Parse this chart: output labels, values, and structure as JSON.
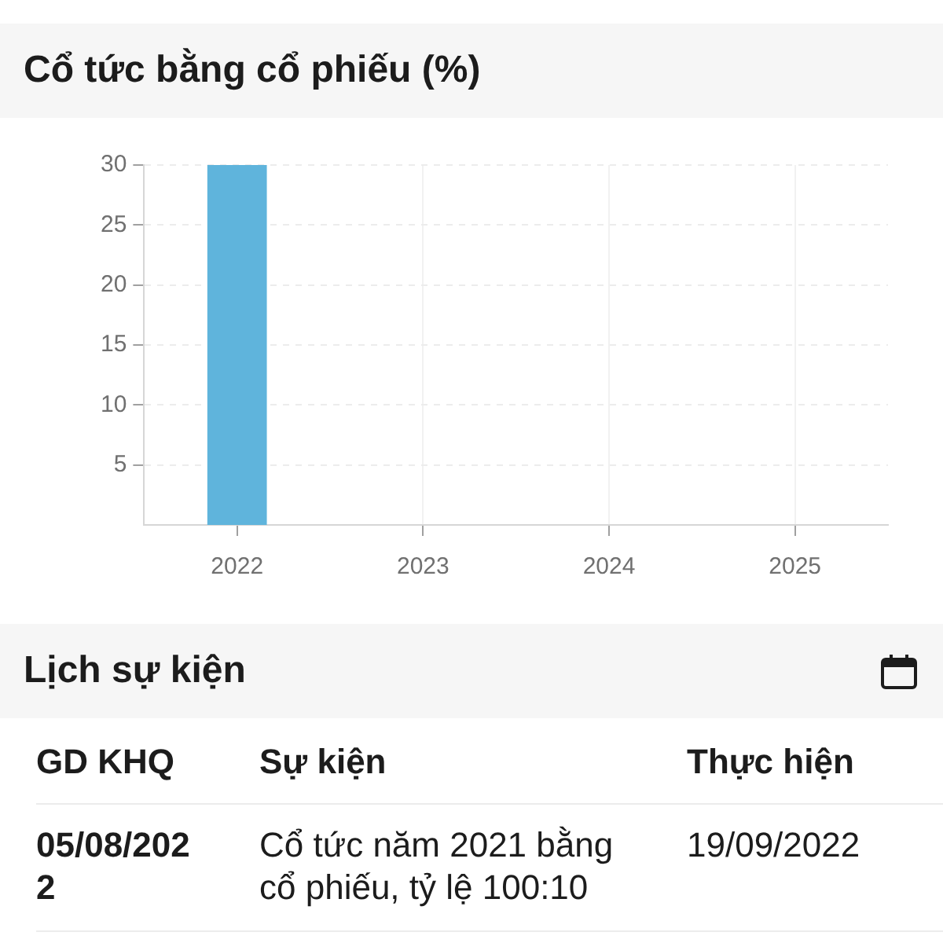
{
  "chart_data": [
    {
      "type": "bar",
      "title": "Cổ tức bằng cổ phiếu (%)",
      "categories": [
        "2022",
        "2023",
        "2024",
        "2025"
      ],
      "values": [
        30,
        null,
        null,
        null
      ],
      "color": "#5fb4dc",
      "ylim": [
        0,
        30
      ],
      "yticks": [
        5,
        10,
        15,
        20,
        25,
        30
      ],
      "grid": true
    },
    {
      "type": "other",
      "title": "Lịch sự kiện",
      "annotations": [
        "GD KHQ",
        "Sự kiện",
        "Thực hiện",
        "05/08/2022",
        "Cổ tức năm 2021 bằng cổ phiếu, tỷ lệ 100:10",
        "19/09/2022"
      ]
    }
  ]
}
